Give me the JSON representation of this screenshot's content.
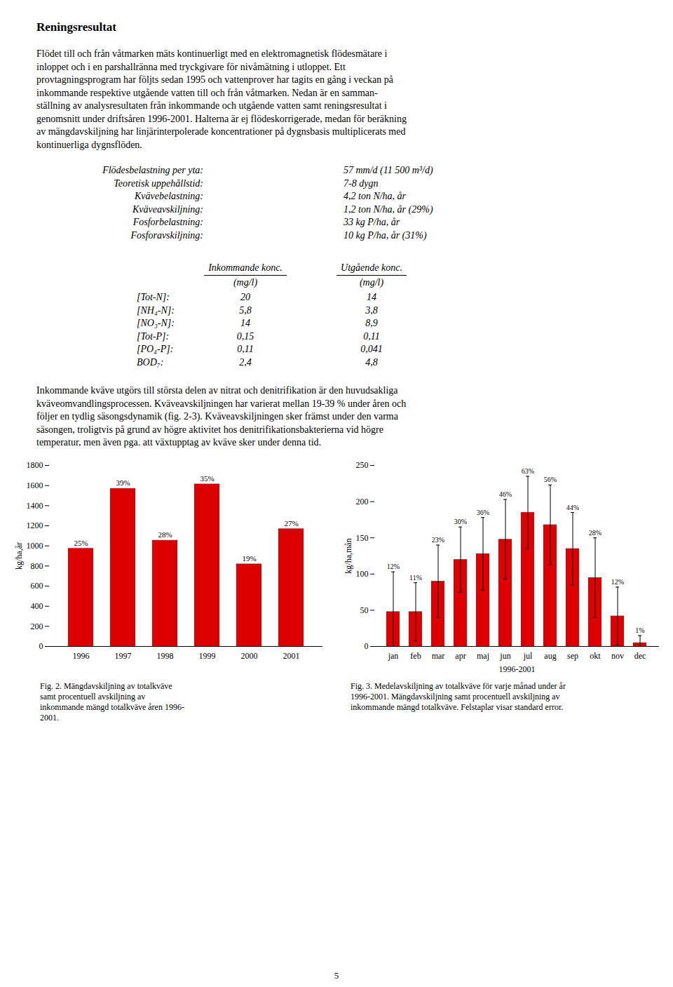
{
  "title": "Reningsresultat",
  "para1": [
    "Flödet till och från våtmarken mäts kontinuerligt med en elektromagnetisk flödesmätare i",
    "inloppet och i en parshallränna med tryckgivare för nivåmätning i utloppet. Ett",
    "provtagningsprogram har följts sedan 1995 och vattenprover har tagits en gång i veckan på",
    "inkommande respektive utgående vatten till och från våtmarken. Nedan är en samman-",
    "ställning av analysresultaten från inkommande och utgående vatten samt reningsresultat i",
    "genomsnitt under driftsåren 1996-2001. Halterna är ej flödeskorrigerade, medan för beräkning",
    "av mängdavskiljning har linjärinterpolerade koncentrationer på dygnsbasis multiplicerats med",
    "kontinuerliga dygnsflöden."
  ],
  "stats_lines": [
    [
      "Flödesbelastning per yta:",
      "57 mm/d (11 500 m³/d)"
    ],
    [
      "Teoretisk uppehållstid:",
      "7-8 dygn"
    ],
    [
      "Kvävebelastning:",
      "4,2 ton N/ha, år"
    ],
    [
      "Kväveavskiljning:",
      "1,2 ton N/ha, år (29%)"
    ],
    [
      "Fosforbelastning:",
      "33 kg P/ha, år"
    ],
    [
      "Fosforavskiljning:",
      "10 kg P/ha, år (31%)"
    ]
  ],
  "table": {
    "headers": [
      "Inkommande konc.",
      "Utgående konc."
    ],
    "subheader": "(mg/l)",
    "rows": [
      [
        "[Tot-N]:",
        "20",
        "14"
      ],
      [
        "[NH₄-N]:",
        "5,8",
        "3,8"
      ],
      [
        "[NO₃-N]:",
        "14",
        "8,9"
      ],
      [
        "[Tot-P]:",
        "0,15",
        "0,11"
      ],
      [
        "[PO₄-P]:",
        "0,11",
        "0,041"
      ],
      [
        "BOD₇:",
        "2,4",
        "4,8"
      ]
    ]
  },
  "para2": [
    "Inkommande kväve utgörs till största delen av nitrat och denitrifikation är den huvudsakliga",
    "kväveomvandlingsprocessen. Kväveavskiljningen har varierat mellan 19-39 % under åren och",
    "följer en tydlig säsongsdynamik (fig. 2-3). Kväveavskiljningen sker främst under den varma",
    "säsongen, troligtvis på grund av högre aktivitet hos denitrifikationsbakterierna vid högre",
    "temperatur, men även pga. att växtupptag av kväve sker under denna tid."
  ],
  "page_number": "5",
  "chart_data": [
    {
      "type": "bar",
      "categories": [
        "1996",
        "1997",
        "1998",
        "1999",
        "2000",
        "2001"
      ],
      "values": [
        975,
        1570,
        1055,
        1615,
        820,
        1170
      ],
      "percent_labels": [
        "25%",
        "39%",
        "28%",
        "35%",
        "19%",
        "27%"
      ],
      "color": "#dd0000",
      "ylabel": "kg/ha,år",
      "ylim": [
        0,
        1800
      ],
      "yticks": [
        0,
        200,
        400,
        600,
        800,
        1000,
        1200,
        1400,
        1600,
        1800
      ],
      "grid": false,
      "caption": [
        "Fig. 2. Mängdavskiljning av totalkväve",
        "samt procentuell avskiljning av",
        "inkommande mängd totalkväve åren 1996-",
        "2001."
      ]
    },
    {
      "type": "bar",
      "categories": [
        "jan",
        "feb",
        "mar",
        "apr",
        "maj",
        "jun",
        "jul",
        "aug",
        "sep",
        "okt",
        "nov",
        "dec"
      ],
      "values": [
        48,
        48,
        90,
        120,
        128,
        148,
        185,
        168,
        135,
        95,
        42,
        5
      ],
      "errors": [
        55,
        40,
        50,
        45,
        50,
        55,
        50,
        55,
        50,
        55,
        40,
        10
      ],
      "percent_labels": [
        "12%",
        "11%",
        "23%",
        "30%",
        "36%",
        "46%",
        "63%",
        "56%",
        "44%",
        "28%",
        "12%",
        "1%"
      ],
      "color": "#dd0000",
      "ylabel": "kg/ha,mån",
      "xlabel": "1996-2001",
      "ylim": [
        0,
        250
      ],
      "yticks": [
        0,
        50,
        100,
        150,
        200,
        250
      ],
      "grid": false,
      "caption": [
        "Fig. 3. Medelavskiljning av totalkväve för varje månad under år",
        "1996-2001. Mängdavskiljning samt procentuell avskiljning av",
        "inkommande mängd totalkväve. Felstaplar visar standard error."
      ]
    }
  ]
}
